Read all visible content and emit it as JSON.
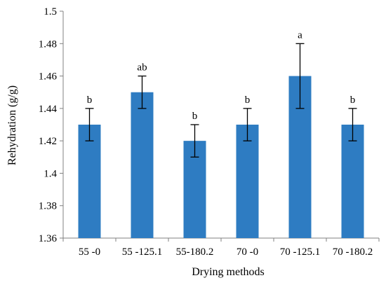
{
  "chart_data": {
    "type": "bar",
    "xlabel": "Drying methods",
    "ylabel": "Rehydration (g/g)",
    "ylim": [
      1.36,
      1.5
    ],
    "yticks": [
      "1.36",
      "1.38",
      "1.4",
      "1.42",
      "1.44",
      "1.46",
      "1.48",
      "1.5"
    ],
    "categories": [
      "55 -0",
      "55 -125.1",
      "55-180.2",
      "70 -0",
      "70 -125.1",
      "70 -180.2"
    ],
    "values": [
      1.43,
      1.45,
      1.42,
      1.43,
      1.46,
      1.43
    ],
    "errors": [
      0.01,
      0.01,
      0.01,
      0.01,
      0.02,
      0.01
    ],
    "labels": [
      "b",
      "ab",
      "b",
      "b",
      "a",
      "b"
    ],
    "grid": false,
    "bar_color": "#2E7CC2",
    "axis_color": "#808080"
  }
}
